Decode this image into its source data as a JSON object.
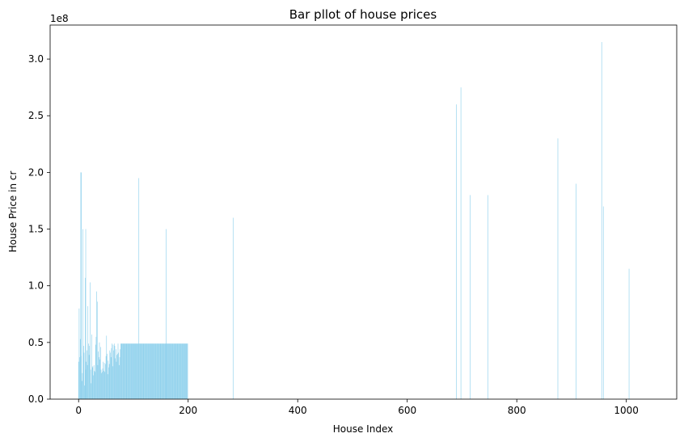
{
  "chart_data": {
    "type": "bar",
    "title": "Bar pllot of house prices",
    "xlabel": "House Index",
    "ylabel": "House Price in cr",
    "y_multiplier_label": "1e8",
    "xlim": [
      -52,
      1092
    ],
    "ylim": [
      0,
      330000000.0
    ],
    "x_ticks": [
      {
        "value": 0,
        "label": "0"
      },
      {
        "value": 200,
        "label": "200"
      },
      {
        "value": 400,
        "label": "400"
      },
      {
        "value": 600,
        "label": "600"
      },
      {
        "value": 800,
        "label": "800"
      },
      {
        "value": 1000,
        "label": "1000"
      }
    ],
    "y_ticks": [
      {
        "value": 0,
        "label": "0.0"
      },
      {
        "value": 50000000,
        "label": "0.5"
      },
      {
        "value": 100000000,
        "label": "1.0"
      },
      {
        "value": 150000000,
        "label": "1.5"
      },
      {
        "value": 200000000,
        "label": "2.0"
      },
      {
        "value": 250000000,
        "label": "2.5"
      },
      {
        "value": 300000000,
        "label": "3.0"
      }
    ],
    "grid": false,
    "legend": "none",
    "bar_color": "#87ceeb",
    "x_range": [
      0,
      1040
    ],
    "notable_values": [
      {
        "x": 5,
        "y": 200000000
      },
      {
        "x": 13,
        "y": 150000000
      },
      {
        "x": 110,
        "y": 195000000
      },
      {
        "x": 160,
        "y": 150000000
      },
      {
        "x": 282,
        "y": 160000000
      },
      {
        "x": 690,
        "y": 260000000
      },
      {
        "x": 698,
        "y": 275000000
      },
      {
        "x": 715,
        "y": 180000000
      },
      {
        "x": 747,
        "y": 180000000
      },
      {
        "x": 875,
        "y": 230000000
      },
      {
        "x": 908,
        "y": 190000000
      },
      {
        "x": 955,
        "y": 315000000
      },
      {
        "x": 958,
        "y": 170000000
      },
      {
        "x": 1005,
        "y": 115000000
      }
    ],
    "values": [
      33000000,
      80000000,
      37000000,
      53000000,
      200000000,
      38000000,
      16000000,
      23000000,
      150000000,
      47000000,
      41000000,
      12000000,
      107000000,
      26000000,
      33000000,
      43000000,
      30000000,
      82000000,
      49000000,
      39000000,
      47000000,
      103000000,
      26000000,
      14000000,
      57000000,
      28000000,
      29000000,
      21000000,
      30000000,
      25000000,
      24000000,
      48000000,
      55000000,
      95000000,
      86000000,
      30000000,
      42000000,
      37000000,
      50000000,
      35000000,
      46000000,
      26000000,
      23000000,
      24000000,
      27000000,
      33000000,
      25000000,
      32000000,
      24000000,
      31000000,
      38000000,
      56000000,
      40000000,
      22000000,
      34000000,
      28000000,
      31000000,
      43000000,
      41000000,
      37000000,
      45000000,
      49000000,
      29000000,
      48000000,
      43000000,
      49000000,
      47000000,
      36000000,
      44000000,
      33000000,
      39000000,
      40000000,
      49000000,
      41000000,
      30000000,
      37000000,
      44000000,
      49000000,
      49000000,
      49000000,
      49000000,
      49000000,
      49000000,
      49000000,
      49000000,
      49000000,
      49000000,
      49000000,
      49000000,
      49000000,
      49000000,
      49000000,
      49000000,
      49000000,
      49000000,
      49000000,
      49000000,
      49000000,
      49000000,
      49000000,
      49000000,
      49000000,
      49000000,
      49000000,
      49000000,
      49000000,
      49000000,
      49000000,
      49000000,
      49000000,
      49000000,
      49000000,
      49000000,
      49000000,
      49000000,
      49000000,
      49000000,
      49000000,
      49000000,
      49000000,
      49000000,
      49000000,
      49000000,
      49000000,
      49000000,
      49000000,
      49000000,
      49000000,
      49000000,
      49000000,
      49000000,
      49000000,
      49000000,
      49000000,
      49000000,
      49000000,
      49000000,
      49000000,
      49000000,
      49000000,
      49000000,
      49000000,
      49000000,
      49000000,
      49000000,
      49000000,
      49000000,
      49000000,
      49000000,
      49000000,
      49000000,
      49000000,
      49000000,
      49000000,
      49000000,
      49000000,
      49000000,
      49000000,
      49000000,
      49000000,
      49000000,
      49000000,
      49000000,
      49000000,
      49000000,
      49000000,
      49000000,
      49000000,
      49000000,
      49000000,
      49000000,
      49000000,
      49000000,
      49000000,
      49000000,
      49000000,
      49000000,
      49000000,
      49000000,
      49000000,
      49000000,
      49000000,
      49000000,
      49000000,
      49000000,
      49000000,
      49000000,
      49000000,
      49000000,
      49000000,
      49000000,
      49000000,
      49000000,
      49000000,
      49000000,
      49000000,
      49000000,
      49000000,
      49000000,
      49000000
    ]
  }
}
